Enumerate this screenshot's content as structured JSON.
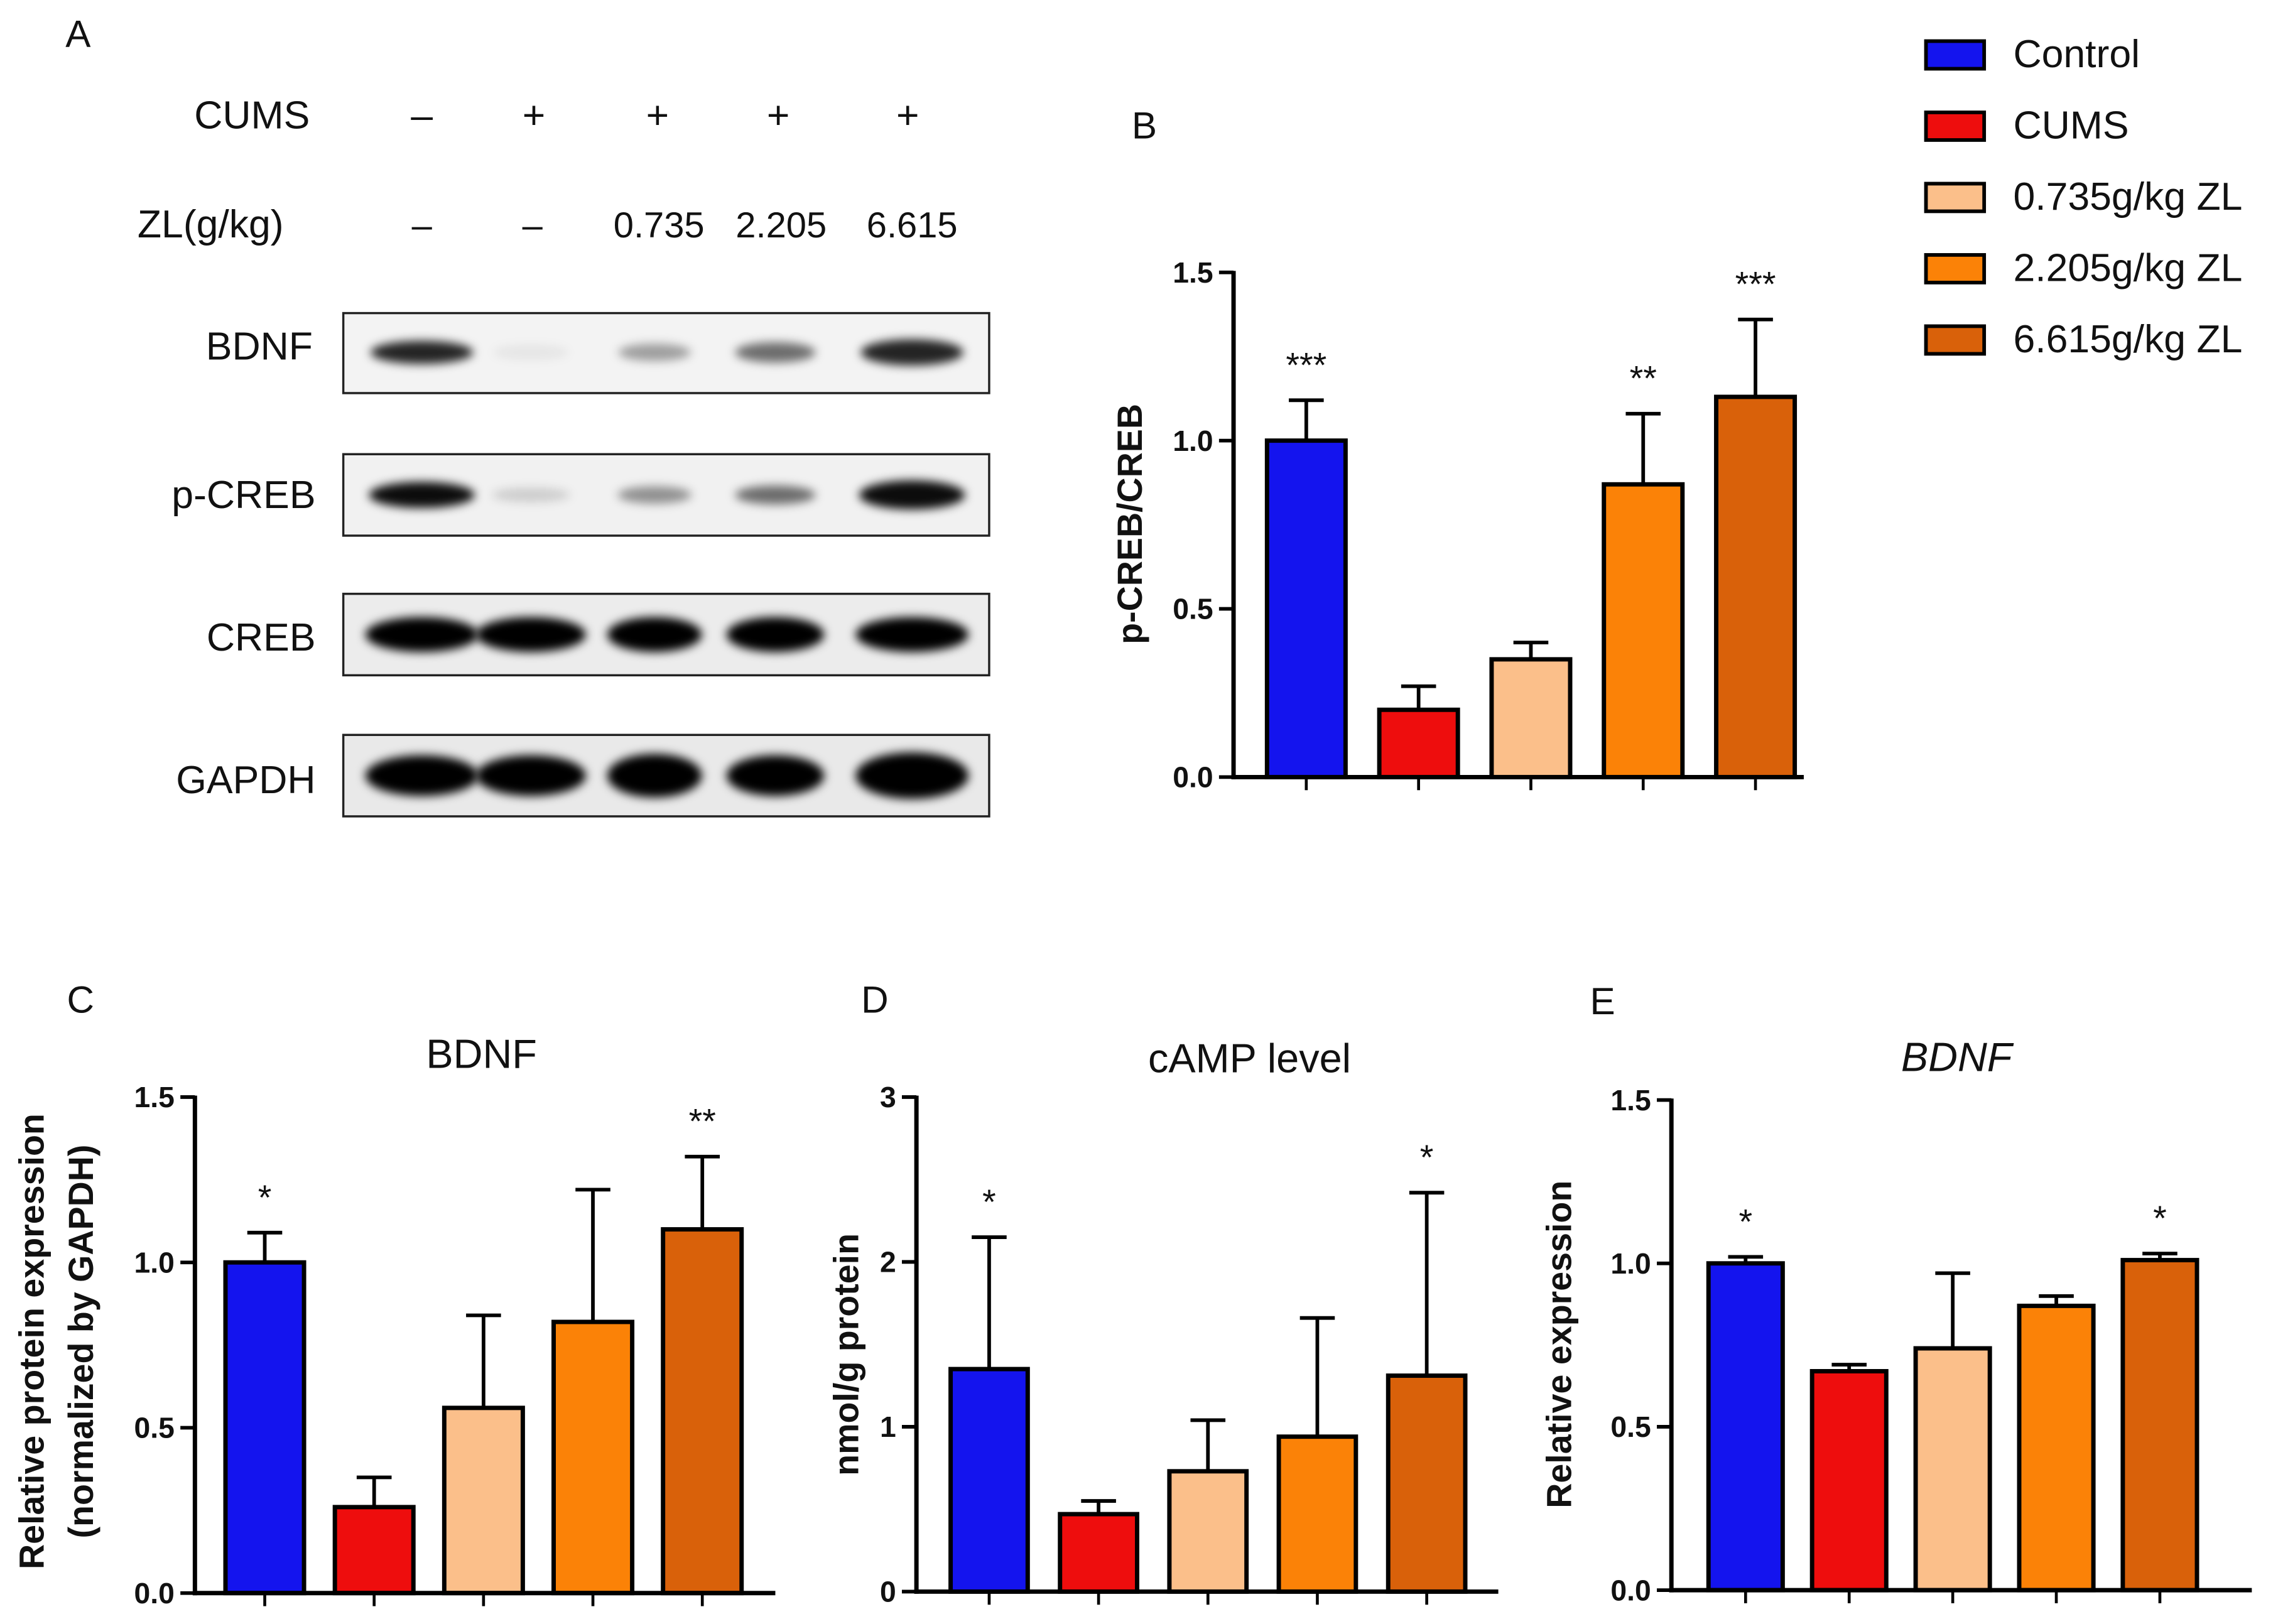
{
  "groups": [
    "Control",
    "CUMS",
    "0.735g/kg ZL",
    "2.205g/kg ZL",
    "6.615g/kg ZL"
  ],
  "colors": [
    "#1414ee",
    "#ee0d0d",
    "#fbbf8a",
    "#fb8207",
    "#d9610a"
  ],
  "blot": {
    "panel_label": "A",
    "cums_label": "CUMS",
    "cums_signs": [
      "–",
      "+",
      "+",
      "+",
      "+"
    ],
    "zl_label": "ZL(g/kg)",
    "zl_values": [
      "–",
      "–",
      "0.735",
      "2.205",
      "6.615"
    ],
    "band_names": [
      "BDNF",
      "p-CREB",
      "CREB",
      "GAPDH"
    ],
    "band_intensity": [
      [
        0.85,
        0.06,
        0.35,
        0.55,
        0.85
      ],
      [
        0.95,
        0.15,
        0.4,
        0.55,
        0.95
      ],
      [
        1.0,
        1.0,
        1.0,
        1.0,
        1.0
      ],
      [
        1.0,
        1.0,
        1.0,
        1.0,
        1.0
      ]
    ]
  },
  "chart_data": [
    {
      "id": "B",
      "type": "bar",
      "panel_label": "B",
      "title": "",
      "title_italic": false,
      "ylabel": "p-CREB/CREB",
      "ylim": [
        0,
        1.5
      ],
      "yticks": [
        0,
        0.5,
        1.0,
        1.5
      ],
      "ytick_labels": [
        "0.0",
        "0.5",
        "1.0",
        "1.5"
      ],
      "values": [
        1.0,
        0.2,
        0.35,
        0.87,
        1.13
      ],
      "errors": [
        0.12,
        0.07,
        0.05,
        0.21,
        0.23
      ],
      "significance": [
        "***",
        "",
        "",
        "**",
        "***"
      ]
    },
    {
      "id": "C",
      "type": "bar",
      "panel_label": "C",
      "title": "BDNF",
      "title_italic": false,
      "ylabel": "Relative protein expression",
      "ylabel2": "(normalized by GAPDH)",
      "ylim": [
        0,
        1.5
      ],
      "yticks": [
        0,
        0.5,
        1.0,
        1.5
      ],
      "ytick_labels": [
        "0.0",
        "0.5",
        "1.0",
        "1.5"
      ],
      "values": [
        1.0,
        0.26,
        0.56,
        0.82,
        1.1
      ],
      "errors": [
        0.09,
        0.09,
        0.28,
        0.4,
        0.22
      ],
      "significance": [
        "*",
        "",
        "",
        "",
        "**"
      ]
    },
    {
      "id": "D",
      "type": "bar",
      "panel_label": "D",
      "title": "cAMP level",
      "title_italic": false,
      "ylabel": "nmol/g protein",
      "ylim": [
        0,
        3
      ],
      "yticks": [
        0,
        1,
        2,
        3
      ],
      "ytick_labels": [
        "0",
        "1",
        "2",
        "3"
      ],
      "values": [
        1.35,
        0.47,
        0.73,
        0.94,
        1.31
      ],
      "errors": [
        0.8,
        0.08,
        0.31,
        0.72,
        1.11
      ],
      "significance": [
        "*",
        "",
        "",
        "",
        "*"
      ]
    },
    {
      "id": "E",
      "type": "bar",
      "panel_label": "E",
      "title": "BDNF",
      "title_italic": true,
      "ylabel": "Relative expression",
      "ylim": [
        0,
        1.5
      ],
      "yticks": [
        0,
        0.5,
        1.0,
        1.5
      ],
      "ytick_labels": [
        "0.0",
        "0.5",
        "1.0",
        "1.5"
      ],
      "values": [
        1.0,
        0.67,
        0.74,
        0.87,
        1.01
      ],
      "errors": [
        0.02,
        0.02,
        0.23,
        0.03,
        0.02
      ],
      "significance": [
        "*",
        "",
        "",
        "",
        "*"
      ]
    }
  ]
}
